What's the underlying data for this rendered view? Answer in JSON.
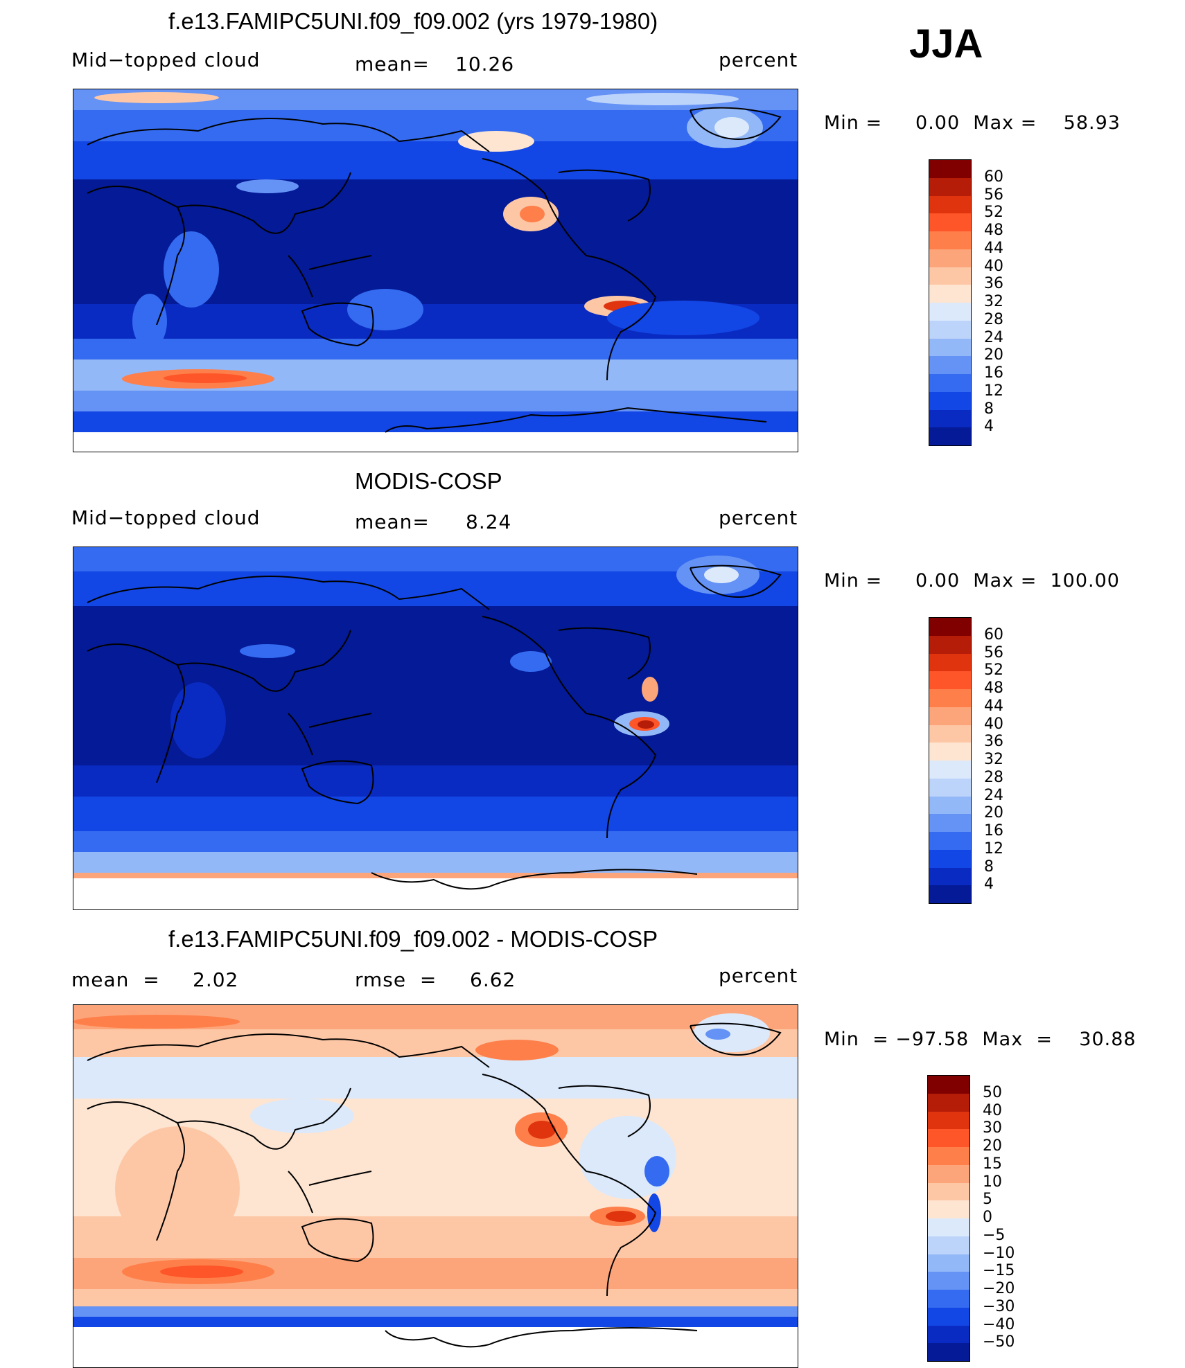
{
  "season": "JJA",
  "panels": [
    {
      "id": "model",
      "title": "f.e13.FAMIPC5UNI.f09_f09.002 (yrs 1979-1980)",
      "variable": "Mid−topped cloud",
      "stat_label": "mean=",
      "stat_value": "10.26",
      "stat2_label": "",
      "stat2_value": "",
      "units": "percent",
      "minmax": "Min =     0.00  Max =    58.93",
      "min": 0.0,
      "max": 58.93,
      "colorbar": {
        "ticks": [
          "60",
          "56",
          "52",
          "48",
          "44",
          "40",
          "36",
          "32",
          "28",
          "24",
          "20",
          "16",
          "12",
          "8",
          "4"
        ],
        "colors": [
          "#800000",
          "#b51d09",
          "#e0340f",
          "#fe5529",
          "#fe7f4a",
          "#fda57a",
          "#fdc7a6",
          "#fde5d2",
          "#dbe9fb",
          "#bcd3fa",
          "#93b8f7",
          "#6492f5",
          "#346bf1",
          "#1246e5",
          "#0a2bc1",
          "#041a96"
        ]
      }
    },
    {
      "id": "obs",
      "title": "MODIS-COSP",
      "variable": "Mid−topped cloud",
      "stat_label": "mean=",
      "stat_value": "8.24",
      "stat2_label": "",
      "stat2_value": "",
      "units": "percent",
      "minmax": "Min =     0.00  Max =  100.00",
      "min": 0.0,
      "max": 100.0,
      "colorbar": {
        "ticks": [
          "60",
          "56",
          "52",
          "48",
          "44",
          "40",
          "36",
          "32",
          "28",
          "24",
          "20",
          "16",
          "12",
          "8",
          "4"
        ],
        "colors": [
          "#800000",
          "#b51d09",
          "#e0340f",
          "#fe5529",
          "#fe7f4a",
          "#fda57a",
          "#fdc7a6",
          "#fde5d2",
          "#dbe9fb",
          "#bcd3fa",
          "#93b8f7",
          "#6492f5",
          "#346bf1",
          "#1246e5",
          "#0a2bc1",
          "#041a96"
        ]
      }
    },
    {
      "id": "diff",
      "title": "f.e13.FAMIPC5UNI.f09_f09.002 - MODIS-COSP",
      "variable": "",
      "stat_label": "mean  =",
      "stat_value": "2.02",
      "stat2_label": "rmse  =",
      "stat2_value": "6.62",
      "units": "percent",
      "minmax": "Min  = −97.58  Max  =    30.88",
      "min": -97.58,
      "max": 30.88,
      "colorbar": {
        "ticks": [
          "50",
          "40",
          "30",
          "20",
          "15",
          "10",
          "5",
          "0",
          "−5",
          "−10",
          "−15",
          "−20",
          "−30",
          "−40",
          "−50"
        ],
        "colors": [
          "#800000",
          "#b51d09",
          "#e0340f",
          "#fe5529",
          "#fe7f4a",
          "#fda57a",
          "#fdc7a6",
          "#fde5d2",
          "#dbe9fb",
          "#bcd3fa",
          "#93b8f7",
          "#6492f5",
          "#346bf1",
          "#1246e5",
          "#0a2bc1",
          "#041a96"
        ]
      }
    }
  ]
}
